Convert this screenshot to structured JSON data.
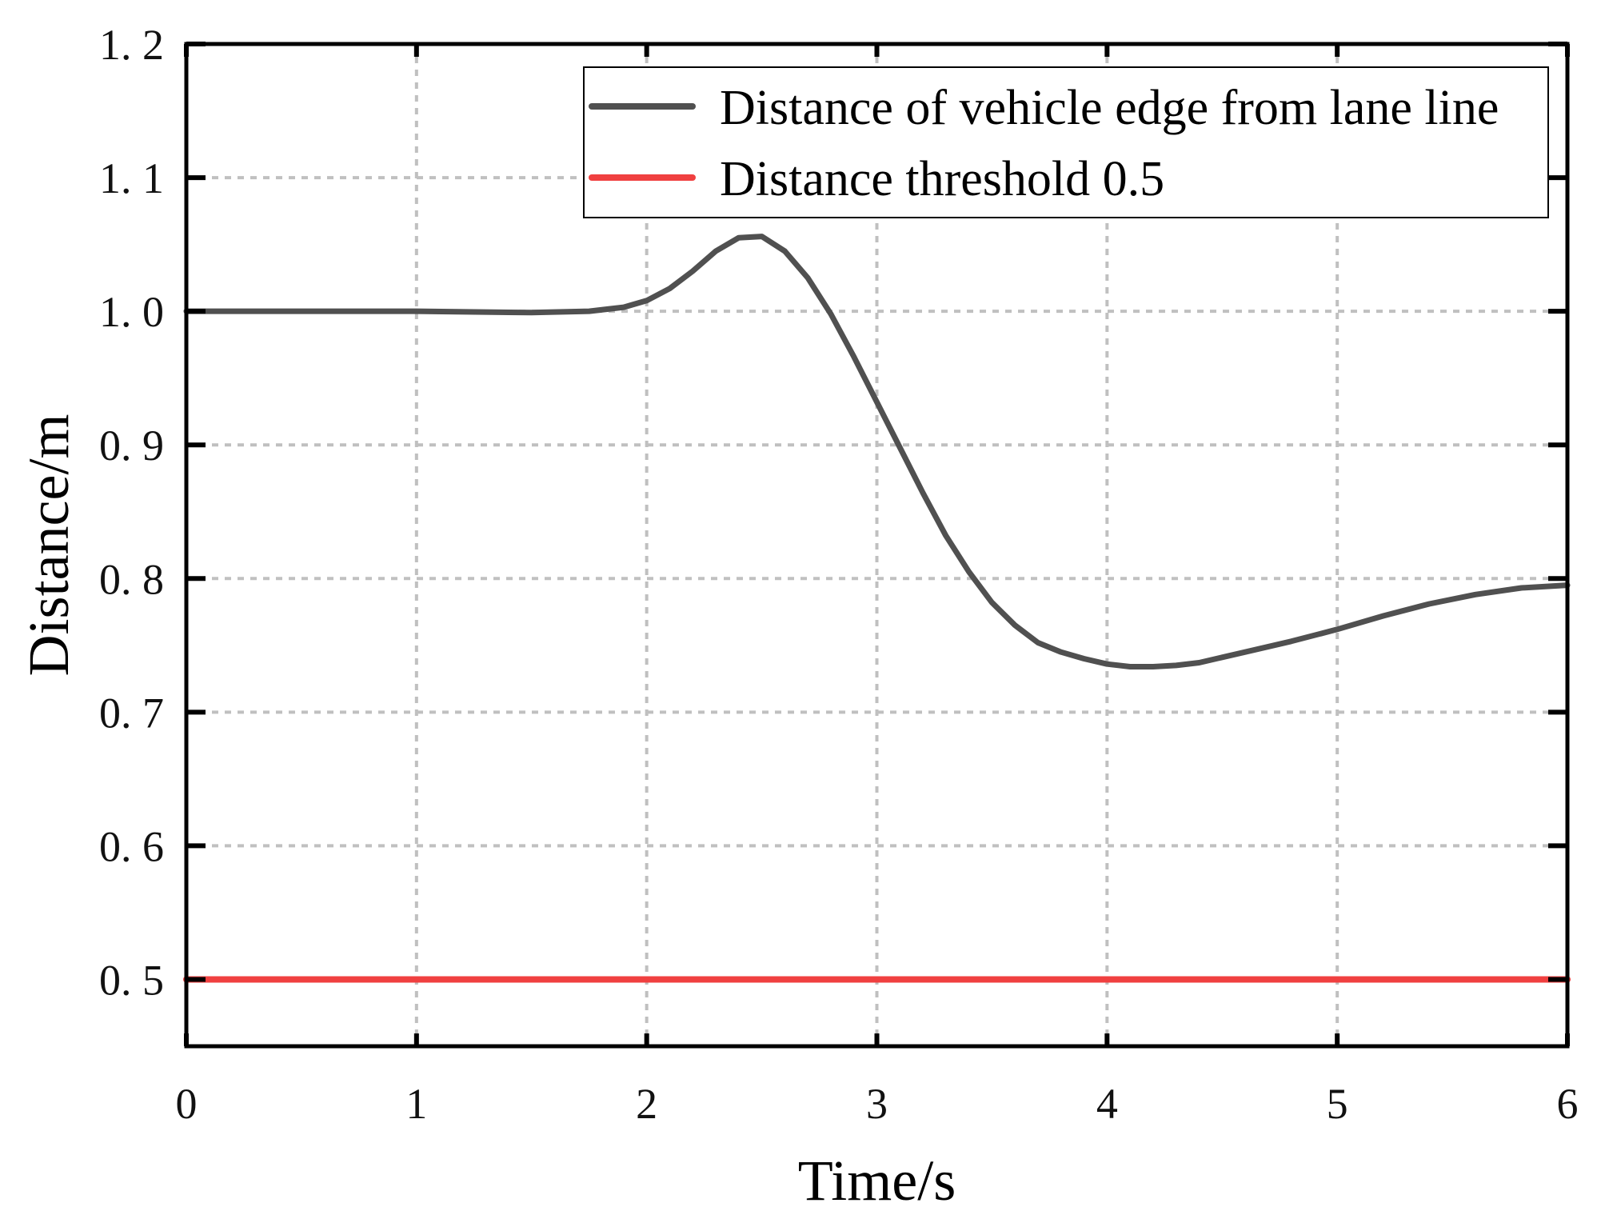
{
  "chart_data": {
    "type": "line",
    "title": "",
    "xlabel": "Time/s",
    "ylabel": "Distance/m",
    "xlim": [
      0,
      6
    ],
    "ylim": [
      0.45,
      1.2
    ],
    "xticks": [
      "0",
      "1",
      "2",
      "3",
      "4",
      "5",
      "6"
    ],
    "yticks": [
      "0. 5",
      "0. 6",
      "0. 7",
      "0. 8",
      "0. 9",
      "1. 0",
      "1. 1",
      "1. 2"
    ],
    "grid": true,
    "legend_position": "top-right",
    "series": [
      {
        "name": "Distance of vehicle edge from lane line",
        "color": "#505050",
        "x": [
          0,
          0.5,
          1.0,
          1.5,
          1.75,
          1.9,
          2.0,
          2.1,
          2.2,
          2.3,
          2.4,
          2.5,
          2.6,
          2.7,
          2.8,
          2.9,
          3.0,
          3.1,
          3.2,
          3.3,
          3.4,
          3.5,
          3.6,
          3.7,
          3.8,
          3.9,
          4.0,
          4.1,
          4.2,
          4.3,
          4.4,
          4.5,
          4.6,
          4.8,
          5.0,
          5.2,
          5.4,
          5.6,
          5.8,
          6.0
        ],
        "y": [
          1.0,
          1.0,
          1.0,
          0.999,
          1.0,
          1.003,
          1.008,
          1.017,
          1.03,
          1.045,
          1.055,
          1.056,
          1.045,
          1.025,
          0.998,
          0.966,
          0.932,
          0.898,
          0.864,
          0.832,
          0.805,
          0.782,
          0.765,
          0.752,
          0.745,
          0.74,
          0.736,
          0.734,
          0.734,
          0.735,
          0.737,
          0.741,
          0.745,
          0.753,
          0.762,
          0.772,
          0.781,
          0.788,
          0.793,
          0.795
        ]
      },
      {
        "name": "Distance threshold 0.5",
        "color": "#f04040",
        "x": [
          0,
          6
        ],
        "y": [
          0.5,
          0.5
        ]
      }
    ]
  }
}
